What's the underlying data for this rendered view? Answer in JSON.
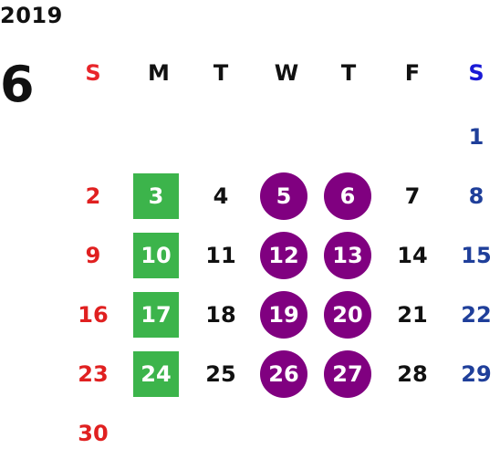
{
  "calendar": {
    "year": "2019",
    "month": "6",
    "weekdays": [
      "S",
      "M",
      "T",
      "W",
      "T",
      "F",
      "S"
    ],
    "weekday_colors": {
      "sunday": "#e8252a",
      "saturday": "#1a1ad6",
      "weekday": "#111111"
    },
    "highlight_colors": {
      "green_square": "#3cb44b",
      "purple_circle": "#800080"
    },
    "first_weekday_index": 6,
    "days_in_month": 30,
    "green_days": [
      3,
      10,
      17,
      24
    ],
    "purple_days": [
      5,
      6,
      12,
      13,
      19,
      20,
      26,
      27
    ]
  }
}
